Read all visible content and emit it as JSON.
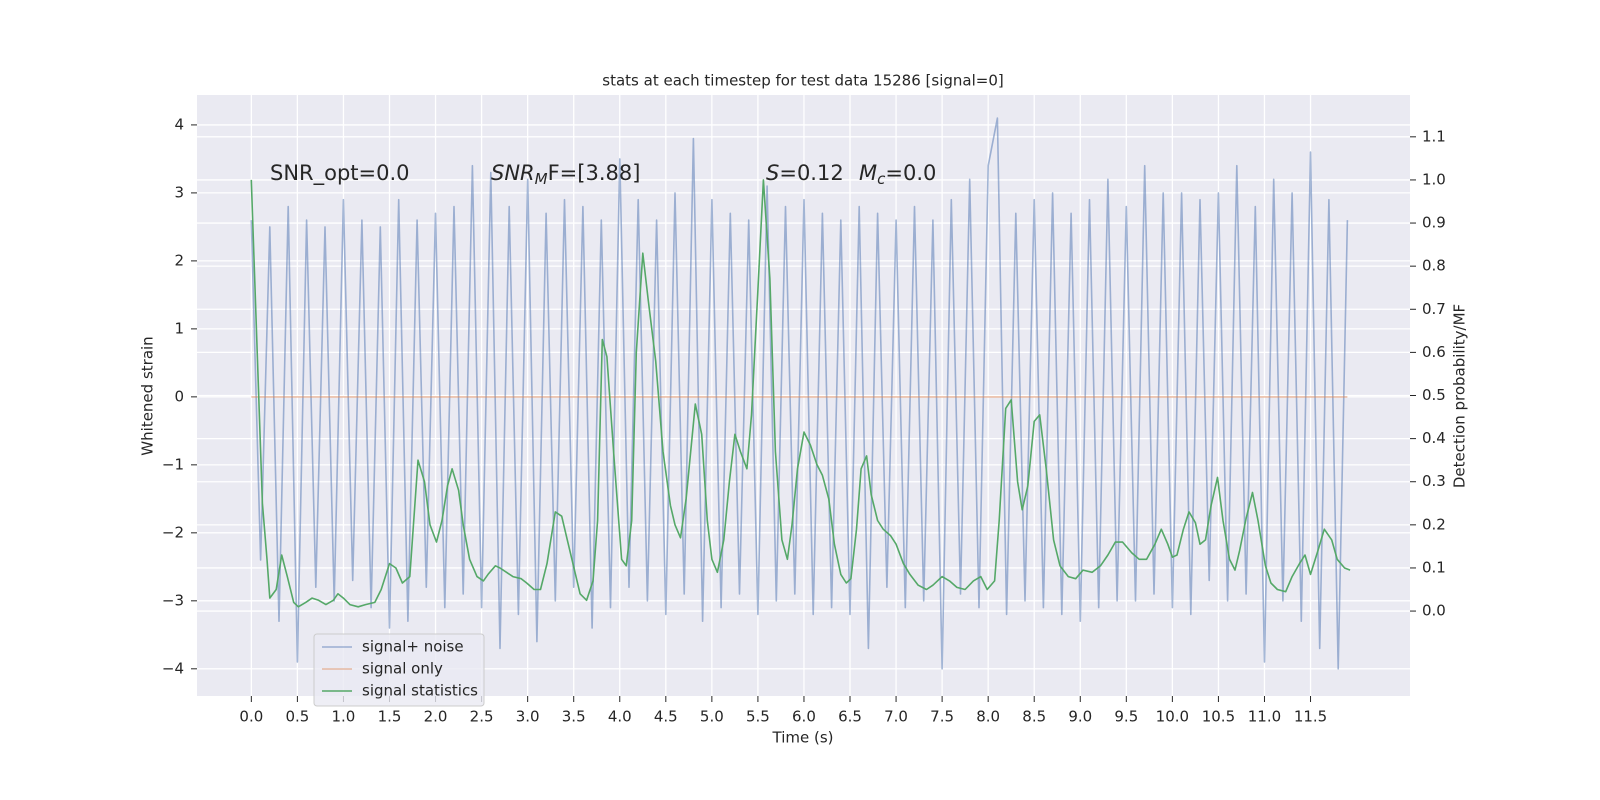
{
  "chart_data": {
    "type": "line",
    "title": "stats at each timestep for test data 15286 [signal=0]",
    "xlabel": "Time (s)",
    "ylabel": "Whitened strain",
    "y2label": "Detection probability/MF",
    "xlim": [
      -0.59,
      12.58
    ],
    "ylim": [
      -4.4,
      4.44
    ],
    "y2lim": [
      -0.197,
      1.197
    ],
    "grid": true,
    "legend": "lower left",
    "xticks": [
      {
        "value": 0,
        "label": "0.0"
      },
      0.5,
      {
        "value": 1,
        "label": "1.0"
      },
      1.5,
      {
        "value": 2,
        "label": "2.0"
      },
      2.5,
      {
        "value": 3,
        "label": "3.0"
      },
      3.5,
      {
        "value": 4,
        "label": "4.0"
      },
      4.5,
      {
        "value": 5,
        "label": "5.0"
      },
      5.5,
      {
        "value": 6,
        "label": "6.0"
      },
      6.5,
      {
        "value": 7,
        "label": "7.0"
      },
      7.5,
      {
        "value": 8,
        "label": "8.0"
      },
      8.5,
      {
        "value": 9,
        "label": "9.0"
      },
      9.5,
      {
        "value": 10,
        "label": "10.0"
      },
      10.5,
      {
        "value": 11,
        "label": "11.0"
      },
      11.5
    ],
    "yticks": [
      {
        "value": -4,
        "label": "−4"
      },
      {
        "value": -3,
        "label": "−3"
      },
      {
        "value": -2,
        "label": "−2"
      },
      {
        "value": -1,
        "label": "−1"
      },
      0,
      1,
      2,
      3,
      4
    ],
    "y2ticks": [
      {
        "value": 0,
        "label": "0.0"
      },
      0.1,
      0.2,
      0.3,
      0.4,
      0.5,
      0.6,
      0.7,
      0.8,
      0.9,
      {
        "value": 1,
        "label": "1.0"
      },
      1.1
    ],
    "annotations": [
      {
        "parts": [
          "SNR_opt=0.0"
        ]
      },
      {
        "parts": [
          "SNR",
          "M",
          "F=[3.88]"
        ]
      },
      {
        "parts": [
          "S",
          "=0.12"
        ]
      },
      {
        "parts": [
          "M",
          "c",
          "=0.0"
        ]
      }
    ],
    "series": [
      {
        "name": "signal+ noise",
        "color": "#4c72b0",
        "opacity": 0.5,
        "x": [
          0,
          0.1,
          0.2,
          0.3,
          0.4,
          0.5,
          0.6,
          0.7,
          0.8,
          0.9,
          1,
          1.1,
          1.2,
          1.3,
          1.4,
          1.5,
          1.6,
          1.7,
          1.8,
          1.9,
          2,
          2.1,
          2.2,
          2.3,
          2.4,
          2.5,
          2.6,
          2.7,
          2.8,
          2.9,
          3,
          3.1,
          3.2,
          3.3,
          3.4,
          3.5,
          3.6,
          3.7,
          3.8,
          3.9,
          4,
          4.1,
          4.2,
          4.3,
          4.4,
          4.5,
          4.6,
          4.7,
          4.8,
          4.9,
          5,
          5.1,
          5.2,
          5.3,
          5.4,
          5.5,
          5.6,
          5.7,
          5.8,
          5.9,
          6,
          6.1,
          6.2,
          6.3,
          6.4,
          6.5,
          6.6,
          6.7,
          6.8,
          6.9,
          7,
          7.1,
          7.2,
          7.3,
          7.4,
          7.5,
          7.6,
          7.7,
          7.8,
          7.9,
          8,
          8.1,
          8.2,
          8.3,
          8.4,
          8.5,
          8.6,
          8.7,
          8.8,
          8.9,
          9,
          9.1,
          9.2,
          9.3,
          9.4,
          9.5,
          9.6,
          9.7,
          9.8,
          9.9,
          10,
          10.1,
          10.2,
          10.3,
          10.4,
          10.5,
          10.6,
          10.7,
          10.8,
          10.9,
          11,
          11.1,
          11.2,
          11.3,
          11.4,
          11.5,
          11.6,
          11.7,
          11.8,
          11.9
        ],
        "values": [
          2.6,
          -2.4,
          2.5,
          -3.3,
          2.8,
          -3.9,
          2.6,
          -2.8,
          2.5,
          -3.0,
          2.9,
          -2.7,
          2.6,
          -3.1,
          2.5,
          -3.4,
          2.9,
          -3.3,
          2.6,
          -2.8,
          2.7,
          -3.1,
          2.8,
          -2.9,
          3.4,
          -3.1,
          3.3,
          -3.7,
          2.8,
          -3.2,
          3.2,
          -3.6,
          2.7,
          -3.0,
          2.9,
          -2.8,
          2.8,
          -3.4,
          2.6,
          -3.1,
          3.5,
          -2.8,
          2.9,
          -3.0,
          2.6,
          -3.2,
          3.0,
          -2.9,
          3.8,
          -3.3,
          2.9,
          -3.1,
          2.7,
          -2.9,
          2.6,
          -3.2,
          3.1,
          -3.0,
          2.8,
          -2.9,
          2.9,
          -3.2,
          2.7,
          -3.1,
          2.6,
          -3.2,
          2.8,
          -3.7,
          2.7,
          -2.8,
          2.6,
          -3.1,
          2.8,
          -3.0,
          2.6,
          -4.0,
          2.9,
          -2.9,
          3.2,
          -3.1,
          3.4,
          4.1,
          -3.2,
          2.7,
          -3.0,
          2.9,
          -3.1,
          3.0,
          -3.2,
          2.7,
          -3.3,
          2.9,
          -3.1,
          3.2,
          -3.0,
          2.8,
          -3.0,
          3.4,
          -2.9,
          3.0,
          -3.1,
          3.0,
          -3.2,
          2.9,
          -2.7,
          3.0,
          -3.0,
          3.4,
          -2.9,
          2.8,
          -3.9,
          3.2,
          -3.0,
          3.0,
          -3.3,
          3.6,
          -3.7,
          2.9,
          -4.0,
          2.6
        ]
      },
      {
        "name": "signal only",
        "color": "#dd8452",
        "opacity": 0.5,
        "x": [
          0,
          11.9
        ],
        "values": [
          0,
          0
        ]
      },
      {
        "name": "signal statistics",
        "color": "#55a868",
        "opacity": 1,
        "axis": "y2",
        "x": [
          0,
          0.12,
          0.17,
          0.2,
          0.27,
          0.33,
          0.39,
          0.46,
          0.51,
          0.59,
          0.66,
          0.73,
          0.81,
          0.89,
          0.94,
          1.0,
          1.07,
          1.16,
          1.24,
          1.34,
          1.41,
          1.5,
          1.57,
          1.64,
          1.72,
          1.81,
          1.88,
          1.94,
          2.01,
          2.07,
          2.13,
          2.18,
          2.25,
          2.3,
          2.37,
          2.45,
          2.52,
          2.57,
          2.65,
          2.7,
          2.77,
          2.84,
          2.93,
          2.99,
          3.07,
          3.14,
          3.21,
          3.3,
          3.37,
          3.43,
          3.52,
          3.57,
          3.64,
          3.71,
          3.76,
          3.81,
          3.86,
          3.94,
          4.02,
          4.07,
          4.13,
          4.18,
          4.25,
          4.31,
          4.39,
          4.47,
          4.55,
          4.6,
          4.66,
          4.72,
          4.82,
          4.89,
          4.95,
          5.0,
          5.06,
          5.13,
          5.19,
          5.25,
          5.31,
          5.38,
          5.43,
          5.5,
          5.56,
          5.63,
          5.69,
          5.76,
          5.82,
          5.87,
          5.93,
          6.0,
          6.07,
          6.14,
          6.2,
          6.27,
          6.33,
          6.4,
          6.46,
          6.51,
          6.57,
          6.62,
          6.68,
          6.73,
          6.8,
          6.86,
          6.94,
          7.0,
          7.08,
          7.15,
          7.24,
          7.33,
          7.4,
          7.5,
          7.58,
          7.66,
          7.75,
          7.84,
          7.92,
          7.99,
          8.07,
          8.12,
          8.19,
          8.25,
          8.32,
          8.37,
          8.43,
          8.5,
          8.56,
          8.63,
          8.71,
          8.78,
          8.87,
          8.95,
          9.03,
          9.13,
          9.22,
          9.3,
          9.38,
          9.46,
          9.56,
          9.64,
          9.72,
          9.81,
          9.88,
          9.95,
          10.0,
          10.05,
          10.12,
          10.18,
          10.25,
          10.3,
          10.36,
          10.42,
          10.49,
          10.55,
          10.62,
          10.68,
          10.73,
          10.8,
          10.87,
          10.93,
          11.01,
          11.07,
          11.14,
          11.23,
          11.3,
          11.38,
          11.44,
          11.5,
          11.58,
          11.65,
          11.73,
          11.79,
          11.87,
          11.93
        ],
        "values": [
          1.0,
          0.25,
          0.12,
          0.03,
          0.05,
          0.13,
          0.08,
          0.02,
          0.01,
          0.02,
          0.03,
          0.025,
          0.015,
          0.025,
          0.04,
          0.03,
          0.015,
          0.01,
          0.015,
          0.02,
          0.05,
          0.11,
          0.1,
          0.065,
          0.08,
          0.35,
          0.3,
          0.2,
          0.16,
          0.21,
          0.29,
          0.33,
          0.28,
          0.2,
          0.12,
          0.08,
          0.07,
          0.085,
          0.105,
          0.1,
          0.09,
          0.08,
          0.075,
          0.065,
          0.05,
          0.05,
          0.11,
          0.23,
          0.22,
          0.165,
          0.085,
          0.04,
          0.025,
          0.07,
          0.21,
          0.63,
          0.59,
          0.35,
          0.12,
          0.105,
          0.21,
          0.6,
          0.83,
          0.72,
          0.58,
          0.37,
          0.245,
          0.2,
          0.17,
          0.26,
          0.48,
          0.41,
          0.21,
          0.12,
          0.09,
          0.165,
          0.3,
          0.41,
          0.37,
          0.33,
          0.455,
          0.745,
          1.0,
          0.77,
          0.37,
          0.165,
          0.12,
          0.2,
          0.33,
          0.415,
          0.385,
          0.34,
          0.315,
          0.26,
          0.155,
          0.085,
          0.065,
          0.075,
          0.19,
          0.33,
          0.36,
          0.27,
          0.21,
          0.19,
          0.175,
          0.155,
          0.11,
          0.085,
          0.06,
          0.05,
          0.06,
          0.08,
          0.07,
          0.055,
          0.05,
          0.07,
          0.08,
          0.05,
          0.07,
          0.21,
          0.47,
          0.49,
          0.3,
          0.235,
          0.29,
          0.44,
          0.455,
          0.33,
          0.165,
          0.105,
          0.08,
          0.075,
          0.095,
          0.09,
          0.105,
          0.13,
          0.16,
          0.16,
          0.135,
          0.12,
          0.12,
          0.155,
          0.19,
          0.155,
          0.125,
          0.13,
          0.19,
          0.23,
          0.205,
          0.155,
          0.165,
          0.245,
          0.31,
          0.21,
          0.12,
          0.095,
          0.14,
          0.215,
          0.275,
          0.21,
          0.105,
          0.065,
          0.05,
          0.045,
          0.08,
          0.11,
          0.13,
          0.085,
          0.14,
          0.19,
          0.165,
          0.12,
          0.1,
          0.095
        ]
      }
    ]
  }
}
